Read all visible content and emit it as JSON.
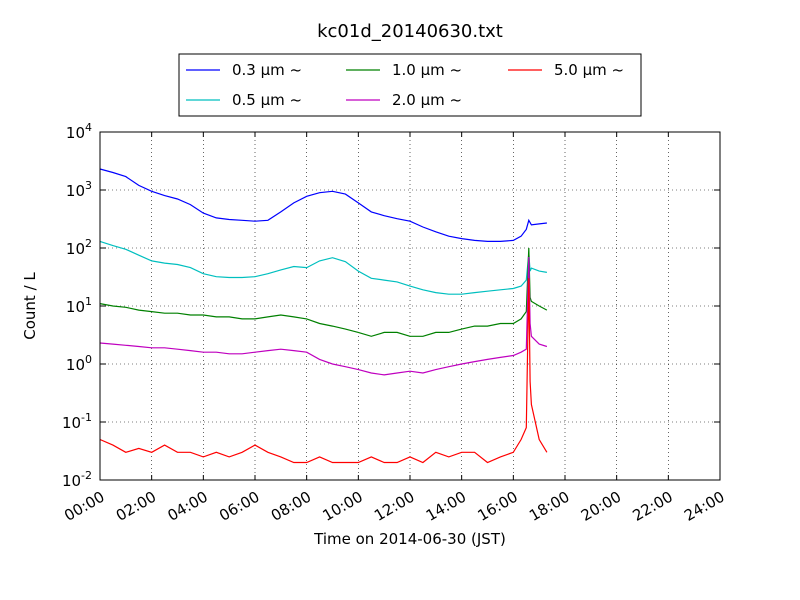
{
  "chart_data": {
    "type": "line",
    "title": "kc01d_20140630.txt",
    "xlabel": "Time on 2014-06-30 (JST)",
    "ylabel": "Count / L",
    "xlim_hours": [
      0,
      24
    ],
    "x_ticks": [
      "00:00",
      "02:00",
      "04:00",
      "06:00",
      "08:00",
      "10:00",
      "12:00",
      "14:00",
      "16:00",
      "18:00",
      "20:00",
      "22:00",
      "24:00"
    ],
    "y_scale": "log",
    "ylim": [
      0.01,
      10000
    ],
    "y_ticks": [
      {
        "value": 0.01,
        "base": "10",
        "exp": "-2"
      },
      {
        "value": 0.1,
        "base": "10",
        "exp": "-1"
      },
      {
        "value": 1,
        "base": "10",
        "exp": "0"
      },
      {
        "value": 10,
        "base": "10",
        "exp": "1"
      },
      {
        "value": 100,
        "base": "10",
        "exp": "2"
      },
      {
        "value": 1000,
        "base": "10",
        "exp": "3"
      },
      {
        "value": 10000,
        "base": "10",
        "exp": "4"
      }
    ],
    "grid": true,
    "legend_position": "top, above plot",
    "series": [
      {
        "name": "0.3 μm ~",
        "color": "#0000ff",
        "x": [
          0,
          0.5,
          1,
          1.5,
          2,
          2.5,
          3,
          3.5,
          4,
          4.5,
          5,
          5.5,
          6,
          6.5,
          7,
          7.5,
          8,
          8.5,
          9,
          9.5,
          10,
          10.5,
          11,
          11.5,
          12,
          12.5,
          13,
          13.5,
          14,
          14.5,
          15,
          15.5,
          16,
          16.3,
          16.5,
          16.6,
          16.7,
          17,
          17.3
        ],
        "y": [
          2300,
          2000,
          1700,
          1200,
          950,
          800,
          700,
          560,
          400,
          330,
          310,
          300,
          290,
          300,
          420,
          600,
          780,
          900,
          950,
          850,
          600,
          420,
          360,
          320,
          290,
          230,
          190,
          160,
          145,
          135,
          130,
          130,
          135,
          160,
          210,
          300,
          250,
          260,
          270
        ]
      },
      {
        "name": "0.5 μm ~",
        "color": "#00bfbf",
        "x": [
          0,
          0.5,
          1,
          1.5,
          2,
          2.5,
          3,
          3.5,
          4,
          4.5,
          5,
          5.5,
          6,
          6.5,
          7,
          7.5,
          8,
          8.5,
          9,
          9.5,
          10,
          10.5,
          11,
          11.5,
          12,
          12.5,
          13,
          13.5,
          14,
          14.5,
          15,
          15.5,
          16,
          16.3,
          16.5,
          16.6,
          16.65,
          16.7,
          17,
          17.3
        ],
        "y": [
          130,
          110,
          95,
          75,
          60,
          55,
          52,
          46,
          36,
          32,
          31,
          31,
          32,
          36,
          42,
          48,
          46,
          60,
          68,
          58,
          40,
          30,
          28,
          26,
          22,
          19,
          17,
          16,
          16,
          17,
          18,
          19,
          20,
          22,
          28,
          80,
          40,
          45,
          40,
          38
        ]
      },
      {
        "name": "1.0 μm ~",
        "color": "#008000",
        "x": [
          0,
          0.5,
          1,
          1.5,
          2,
          2.5,
          3,
          3.5,
          4,
          4.5,
          5,
          5.5,
          6,
          6.5,
          7,
          7.5,
          8,
          8.5,
          9,
          9.5,
          10,
          10.5,
          11,
          11.5,
          12,
          12.5,
          13,
          13.5,
          14,
          14.5,
          15,
          15.5,
          16,
          16.3,
          16.5,
          16.6,
          16.65,
          16.7,
          17,
          17.3
        ],
        "y": [
          11,
          10,
          9.5,
          8.5,
          8,
          7.5,
          7.5,
          7,
          7,
          6.5,
          6.5,
          6,
          6,
          6.5,
          7,
          6.5,
          6,
          5,
          4.5,
          4,
          3.5,
          3,
          3.5,
          3.5,
          3,
          3,
          3.5,
          3.5,
          4,
          4.5,
          4.5,
          5,
          5,
          6,
          8,
          100,
          14,
          12,
          10,
          8.5
        ]
      },
      {
        "name": "2.0 μm ~",
        "color": "#bf00bf",
        "x": [
          0,
          0.5,
          1,
          1.5,
          2,
          2.5,
          3,
          3.5,
          4,
          4.5,
          5,
          5.5,
          6,
          6.5,
          7,
          7.5,
          8,
          8.5,
          9,
          9.5,
          10,
          10.5,
          11,
          11.5,
          12,
          12.5,
          13,
          13.5,
          14,
          14.5,
          15,
          15.5,
          16,
          16.3,
          16.5,
          16.6,
          16.65,
          16.7,
          17,
          17.3
        ],
        "y": [
          2.3,
          2.2,
          2.1,
          2,
          1.9,
          1.9,
          1.8,
          1.7,
          1.6,
          1.6,
          1.5,
          1.5,
          1.6,
          1.7,
          1.8,
          1.7,
          1.6,
          1.2,
          1,
          0.9,
          0.8,
          0.7,
          0.65,
          0.7,
          0.75,
          0.7,
          0.8,
          0.9,
          1,
          1.1,
          1.2,
          1.3,
          1.4,
          1.6,
          1.8,
          70,
          5,
          3,
          2.2,
          2
        ]
      },
      {
        "name": "5.0 μm ~",
        "color": "#ff0000",
        "x": [
          0,
          0.5,
          1,
          1.5,
          2,
          2.5,
          3,
          3.5,
          4,
          4.5,
          5,
          5.5,
          6,
          6.5,
          7,
          7.5,
          8,
          8.5,
          9,
          9.5,
          10,
          10.5,
          11,
          11.5,
          12,
          12.5,
          13,
          13.5,
          14,
          14.5,
          15,
          15.5,
          16,
          16.3,
          16.5,
          16.6,
          16.65,
          16.7,
          17,
          17.3
        ],
        "y": [
          0.05,
          0.04,
          0.03,
          0.035,
          0.03,
          0.04,
          0.03,
          0.03,
          0.025,
          0.03,
          0.025,
          0.03,
          0.04,
          0.03,
          0.025,
          0.02,
          0.02,
          0.025,
          0.02,
          0.02,
          0.02,
          0.025,
          0.02,
          0.02,
          0.025,
          0.02,
          0.03,
          0.025,
          0.03,
          0.03,
          0.02,
          0.025,
          0.03,
          0.05,
          0.08,
          30,
          0.5,
          0.2,
          0.05,
          0.03
        ]
      }
    ]
  }
}
